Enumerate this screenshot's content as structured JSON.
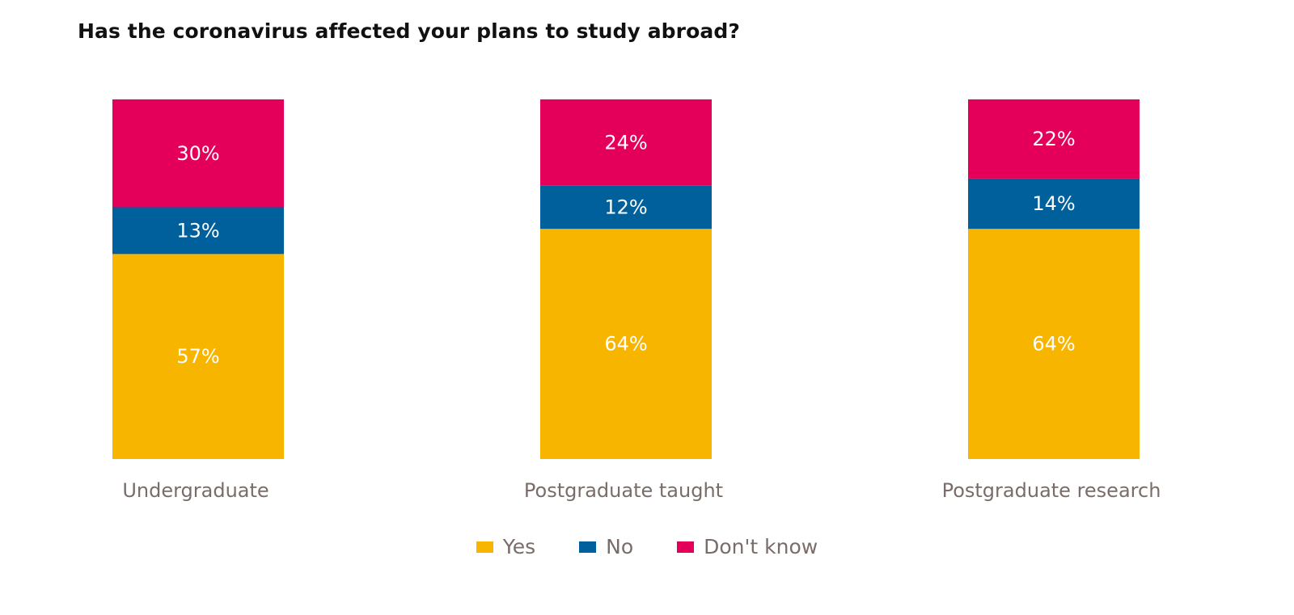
{
  "chart_data": {
    "type": "bar",
    "stacked": true,
    "title": "Has the coronavirus affected your plans to study abroad?",
    "categories": [
      "Undergraduate",
      "Postgraduate taught",
      "Postgraduate research"
    ],
    "series": [
      {
        "name": "Yes",
        "values": [
          57,
          64,
          64
        ],
        "labels": [
          "57%",
          "64%",
          "64%"
        ],
        "color": "#f7b500"
      },
      {
        "name": "No",
        "values": [
          13,
          12,
          14
        ],
        "labels": [
          "13%",
          "12%",
          "14%"
        ],
        "color": "#00609c"
      },
      {
        "name": "Don't know",
        "values": [
          30,
          24,
          22
        ],
        "labels": [
          "30%",
          "24%",
          "22%"
        ],
        "color": "#e4005a"
      }
    ],
    "ylim": [
      0,
      100
    ],
    "xlabel": "",
    "ylabel": "",
    "grid": false,
    "legend_position": "bottom"
  }
}
